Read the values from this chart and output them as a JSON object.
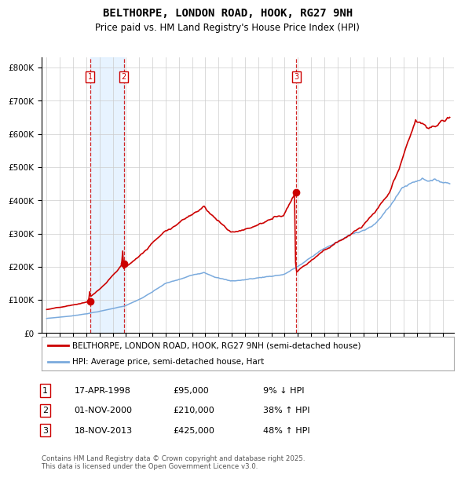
{
  "title": "BELTHORPE, LONDON ROAD, HOOK, RG27 9NH",
  "subtitle": "Price paid vs. HM Land Registry's House Price Index (HPI)",
  "ylim": [
    0,
    830000
  ],
  "yticks": [
    0,
    100000,
    200000,
    300000,
    400000,
    500000,
    600000,
    700000,
    800000
  ],
  "ytick_labels": [
    "£0",
    "£100K",
    "£200K",
    "£300K",
    "£400K",
    "£500K",
    "£600K",
    "£700K",
    "£800K"
  ],
  "sale_times": [
    1998.29,
    2000.83,
    2013.88
  ],
  "sale_prices": [
    95000,
    210000,
    425000
  ],
  "sale_labels": [
    "1",
    "2",
    "3"
  ],
  "legend_red": "BELTHORPE, LONDON ROAD, HOOK, RG27 9NH (semi-detached house)",
  "legend_blue": "HPI: Average price, semi-detached house, Hart",
  "table_rows": [
    {
      "num": "1",
      "date": "17-APR-1998",
      "price": "£95,000",
      "hpi": "9% ↓ HPI"
    },
    {
      "num": "2",
      "date": "01-NOV-2000",
      "price": "£210,000",
      "hpi": "38% ↑ HPI"
    },
    {
      "num": "3",
      "date": "18-NOV-2013",
      "price": "£425,000",
      "hpi": "48% ↑ HPI"
    }
  ],
  "footnote": "Contains HM Land Registry data © Crown copyright and database right 2025.\nThis data is licensed under the Open Government Licence v3.0.",
  "red_color": "#cc0000",
  "blue_color": "#7aaadd",
  "bg_color": "#ffffff",
  "grid_color": "#cccccc",
  "highlight_bg": "#ddeeff",
  "title_fontsize": 10,
  "subtitle_fontsize": 8.5,
  "tick_fontsize": 7.5,
  "legend_fontsize": 7.5,
  "table_fontsize": 8
}
